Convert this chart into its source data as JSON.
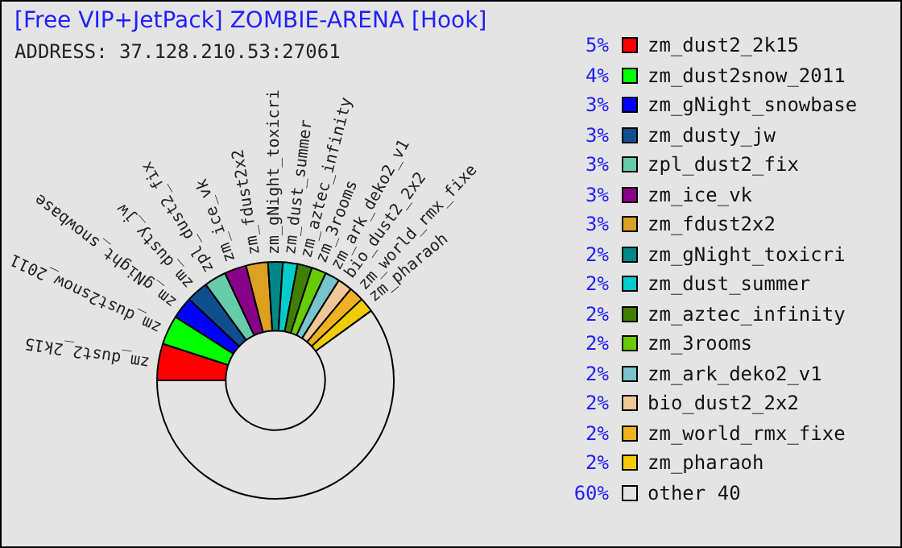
{
  "chart_data": {
    "type": "donut",
    "title": "[Free VIP+JetPack] ZOMBIE-ARENA [Hook]",
    "subtitle": "ADDRESS: 37.128.210.53:27061",
    "categories": [
      "zm_dust2_2k15",
      "zm_dust2snow_2011",
      "zm_gNight_snowbase",
      "zm_dusty_jw",
      "zpl_dust2_fix",
      "zm_ice_vk",
      "zm_fdust2x2",
      "zm_gNight_toxicri",
      "zm_dust_summer",
      "zm_aztec_infinity",
      "zm_3rooms",
      "zm_ark_deko2_v1",
      "bio_dust2_2x2",
      "zm_world_rmx_fixe",
      "zm_pharaoh",
      "other 40"
    ],
    "values": [
      5,
      4,
      3,
      3,
      3,
      3,
      3,
      2,
      2,
      2,
      2,
      2,
      2,
      2,
      2,
      60
    ],
    "value_labels": [
      "5%",
      "4%",
      "3%",
      "3%",
      "3%",
      "3%",
      "3%",
      "2%",
      "2%",
      "2%",
      "2%",
      "2%",
      "2%",
      "2%",
      "2%",
      "60%"
    ],
    "colors": [
      "#ff0000",
      "#00ff00",
      "#0000ff",
      "#0f4f8f",
      "#66ccaa",
      "#880088",
      "#dda020",
      "#008888",
      "#00cccc",
      "#3f8000",
      "#66cc00",
      "#77c4cc",
      "#f0c898",
      "#f0b020",
      "#f0cc00",
      "#e4e4e4"
    ],
    "legend": "right"
  }
}
